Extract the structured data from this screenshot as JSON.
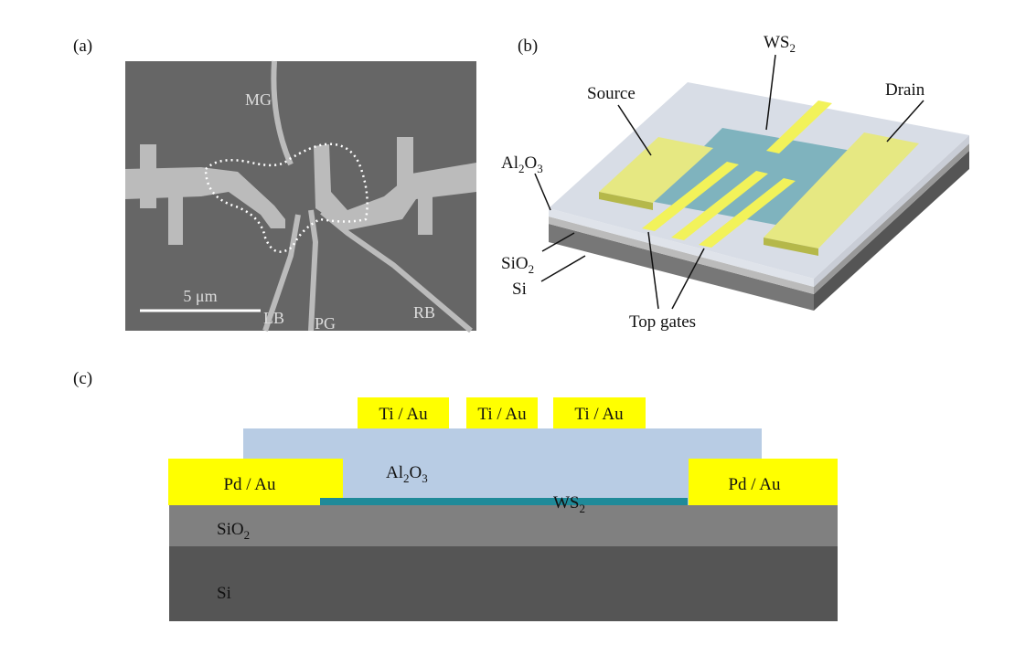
{
  "panels": {
    "a": {
      "label": "(a)",
      "electrodes": [
        "MG",
        "LB",
        "PG",
        "RB"
      ],
      "scale_bar": "5 μm"
    },
    "b": {
      "label": "(b)",
      "ws2": [
        "WS",
        "2"
      ],
      "source": "Source",
      "drain": "Drain",
      "al2o3": [
        "Al",
        "2",
        "O",
        "3"
      ],
      "sio2": [
        "SiO",
        "2"
      ],
      "si": "Si",
      "top_gates": "Top gates"
    },
    "c": {
      "label": "(c)",
      "ti_au": [
        "Ti / Au",
        "Ti / Au",
        "Ti / Au"
      ],
      "pd_au": [
        "Pd / Au",
        "Pd / Au"
      ],
      "al2o3": [
        "Al",
        "2",
        "O",
        "3"
      ],
      "ws2": [
        "WS",
        "2"
      ],
      "sio2": [
        "SiO",
        "2"
      ],
      "si": "Si"
    }
  }
}
